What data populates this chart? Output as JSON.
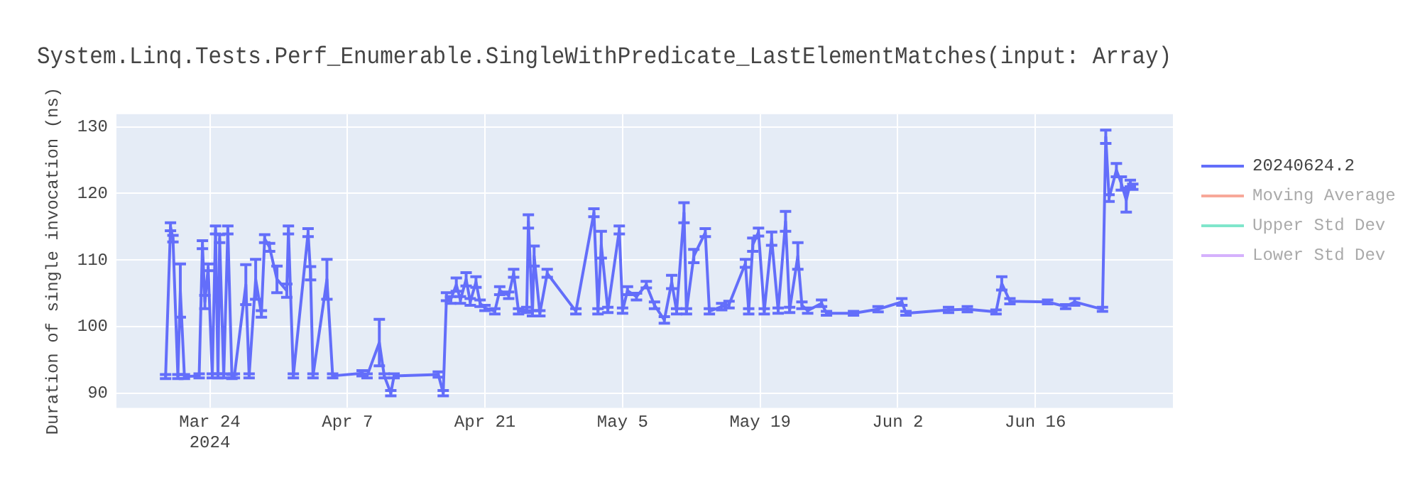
{
  "chart_data": {
    "type": "line",
    "title": "System.Linq.Tests.Perf_Enumerable.SingleWithPredicate_LastElementMatches(input: Array)",
    "ylabel": "Duration of single invocation (ns)",
    "xlim": [
      "2024-03-14T12:00",
      "2024-06-30T00:00"
    ],
    "xticks": [
      {
        "value": "2024-03-24",
        "label": "Mar 24\n2024"
      },
      {
        "value": "2024-04-07",
        "label": "Apr 7"
      },
      {
        "value": "2024-04-21",
        "label": "Apr 21"
      },
      {
        "value": "2024-05-05",
        "label": "May 5"
      },
      {
        "value": "2024-05-19",
        "label": "May 19"
      },
      {
        "value": "2024-06-02",
        "label": "Jun 2"
      },
      {
        "value": "2024-06-16",
        "label": "Jun 16"
      }
    ],
    "ylim": [
      87.8,
      131.9
    ],
    "yticks": [
      90,
      100,
      110,
      120,
      130
    ],
    "grid": true,
    "legend": "top right",
    "marker": "none",
    "line_style": "solid",
    "series": [
      {
        "name": "20240624.2",
        "color": "#636efa",
        "x": [
          "2024-03-19T12:00",
          "2024-03-20T00:00",
          "2024-03-20T06:00",
          "2024-03-20T18:00",
          "2024-03-21T00:00",
          "2024-03-21T10:00",
          "2024-03-22T22:00",
          "2024-03-23T06:00",
          "2024-03-23T12:00",
          "2024-03-23T20:00",
          "2024-03-24T06:00",
          "2024-03-24T14:00",
          "2024-03-24T20:00",
          "2024-03-25T00:00",
          "2024-03-25T10:00",
          "2024-03-25T20:00",
          "2024-03-26T06:00",
          "2024-03-26T12:00",
          "2024-03-27T16:00",
          "2024-03-28T00:00",
          "2024-03-28T16:00",
          "2024-03-29T06:00",
          "2024-03-29T14:00",
          "2024-03-30T02:00",
          "2024-03-30T20:00",
          "2024-03-31T20:00",
          "2024-04-01T00:00",
          "2024-04-01T12:00",
          "2024-04-03T00:00",
          "2024-04-03T06:00",
          "2024-04-03T12:00",
          "2024-04-04T22:00",
          "2024-04-05T12:00",
          "2024-04-08T12:00",
          "2024-04-09T00:00",
          "2024-04-10T06:00",
          "2024-04-10T18:00",
          "2024-04-11T10:00",
          "2024-04-11T18:00",
          "2024-04-16T06:00",
          "2024-04-16T18:00",
          "2024-04-17T02:00",
          "2024-04-17T12:00",
          "2024-04-18T02:00",
          "2024-04-18T12:00",
          "2024-04-19T02:00",
          "2024-04-19T12:00",
          "2024-04-20T02:00",
          "2024-04-20T12:00",
          "2024-04-21T00:00",
          "2024-04-22T00:00",
          "2024-04-22T12:00",
          "2024-04-23T10:00",
          "2024-04-23T22:00",
          "2024-04-24T10:00",
          "2024-04-25T06:00",
          "2024-04-25T10:00",
          "2024-04-25T20:00",
          "2024-04-26T00:00",
          "2024-04-26T14:00",
          "2024-04-27T08:00",
          "2024-04-30T06:00",
          "2024-05-02T02:00",
          "2024-05-02T12:00",
          "2024-05-02T20:00",
          "2024-05-03T12:00",
          "2024-05-04T16:00",
          "2024-05-05T00:00",
          "2024-05-05T12:00",
          "2024-05-06T10:00",
          "2024-05-07T10:00",
          "2024-05-08T06:00",
          "2024-05-09T06:00",
          "2024-05-10T00:00",
          "2024-05-10T12:00",
          "2024-05-11T06:00",
          "2024-05-11T12:00",
          "2024-05-12T06:00",
          "2024-05-13T10:00",
          "2024-05-13T20:00",
          "2024-05-15T02:00",
          "2024-05-15T20:00",
          "2024-05-17T12:00",
          "2024-05-17T20:00",
          "2024-05-18T06:00",
          "2024-05-18T20:00",
          "2024-05-19T10:00",
          "2024-05-20T04:00",
          "2024-05-20T20:00",
          "2024-05-21T14:00",
          "2024-05-22T00:00",
          "2024-05-22T20:00",
          "2024-05-23T06:00",
          "2024-05-23T20:00",
          "2024-05-25T06:00",
          "2024-05-25T18:00",
          "2024-05-28T12:00",
          "2024-05-31T00:00",
          "2024-06-02T10:00",
          "2024-06-02T20:00",
          "2024-06-07T04:00",
          "2024-06-09T02:00",
          "2024-06-12T00:00",
          "2024-06-12T14:00",
          "2024-06-13T10:00",
          "2024-06-17T06:00",
          "2024-06-19T02:00",
          "2024-06-20T00:00",
          "2024-06-22T20:00",
          "2024-06-23T04:00",
          "2024-06-23T12:00",
          "2024-06-24T06:00",
          "2024-06-24T18:00",
          "2024-06-25T06:00",
          "2024-06-25T16:00",
          "2024-06-25T22:00"
        ],
        "values": [
          92.5,
          115,
          113.2,
          92.5,
          105.4,
          92.5,
          92.6,
          112.3,
          103.7,
          108.9,
          92.6,
          114.5,
          92.6,
          113.2,
          92.6,
          114.5,
          92.5,
          92.6,
          106.3,
          92.6,
          107.1,
          101.9,
          113.2,
          111.9,
          107.1,
          105.4,
          114.5,
          92.6,
          114.1,
          108,
          92.6,
          107.1,
          92.6,
          93,
          92.6,
          97.6,
          92.6,
          90,
          92.6,
          92.8,
          90,
          104.5,
          104,
          106.3,
          104,
          107.1,
          103.7,
          106.7,
          103.5,
          102.8,
          102.3,
          105.4,
          104.7,
          108,
          102.3,
          102.5,
          115.8,
          102,
          110.6,
          102,
          108,
          102.3,
          117.1,
          102.3,
          112.3,
          102.5,
          114.5,
          102.4,
          105.4,
          104.5,
          106.3,
          103.2,
          101,
          106.7,
          102.3,
          117.1,
          102.3,
          110.6,
          114.1,
          102.3,
          103,
          103.3,
          109.5,
          102.3,
          112.3,
          114.2,
          102.3,
          113.2,
          102.4,
          115.8,
          102.5,
          110.6,
          103.2,
          102.4,
          103.5,
          102,
          102,
          102.6,
          103.7,
          102,
          102.5,
          102.6,
          102.2,
          106.5,
          103.8,
          103.7,
          103,
          103.7,
          102.6,
          128.5,
          119.3,
          123.5,
          121.5,
          119,
          121.5,
          121
        ],
        "errors": [
          0.3,
          0.6,
          0.5,
          0.3,
          4,
          0.3,
          0.3,
          0.6,
          1,
          0.5,
          0.3,
          0.6,
          0.3,
          0.6,
          0.3,
          0.6,
          0.3,
          0.3,
          3,
          0.3,
          3,
          0.5,
          0.6,
          0.6,
          2,
          1,
          0.6,
          0.3,
          0.6,
          1,
          0.3,
          3,
          0.3,
          0.4,
          0.3,
          3.5,
          0.3,
          0.4,
          0.3,
          0.4,
          0.4,
          0.6,
          0.5,
          1,
          0.5,
          1,
          0.5,
          0.8,
          0.5,
          0.4,
          0.4,
          0.6,
          0.5,
          0.6,
          0.4,
          0.4,
          1,
          0.4,
          1.5,
          0.4,
          0.6,
          0.4,
          0.6,
          0.4,
          2,
          0.4,
          0.6,
          0.4,
          0.6,
          0.5,
          0.5,
          0.5,
          0.5,
          1,
          0.4,
          1.5,
          0.4,
          1,
          0.6,
          0.4,
          0.5,
          0.5,
          0.6,
          0.4,
          1,
          0.6,
          0.4,
          1,
          0.4,
          1.5,
          0.4,
          2,
          0.5,
          0.4,
          0.5,
          0.3,
          0.3,
          0.4,
          0.5,
          0.3,
          0.4,
          0.4,
          0.3,
          1,
          0.4,
          0.3,
          0.3,
          0.5,
          0.3,
          1,
          0.5,
          1,
          1,
          1.8,
          0.5,
          0.4
        ]
      },
      {
        "name": "Moving Average",
        "color": "#f7a899"
      },
      {
        "name": "Upper Std Dev",
        "color": "#80e6cb"
      },
      {
        "name": "Lower Std Dev",
        "color": "#d5b1fd"
      }
    ]
  }
}
